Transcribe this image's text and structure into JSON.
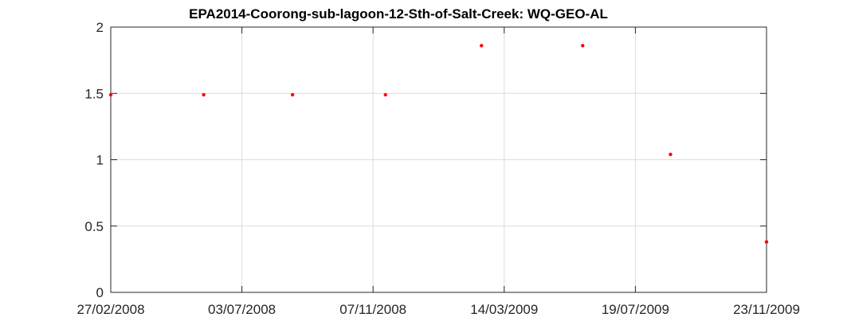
{
  "chart_data": {
    "type": "scatter",
    "title": "EPA2014-Coorong-sub-lagoon-12-Sth-of-Salt-Creek: WQ-GEO-AL",
    "xlabel": "",
    "ylabel": "",
    "x_axis_type": "date",
    "xlim": [
      "2008-02-27",
      "2009-11-23"
    ],
    "ylim": [
      0,
      2
    ],
    "x_ticks": [
      {
        "date": "2008-02-27",
        "label": "27/02/2008"
      },
      {
        "date": "2008-07-03",
        "label": "03/07/2008"
      },
      {
        "date": "2008-11-07",
        "label": "07/11/2008"
      },
      {
        "date": "2009-03-14",
        "label": "14/03/2009"
      },
      {
        "date": "2009-07-19",
        "label": "19/07/2009"
      },
      {
        "date": "2009-11-23",
        "label": "23/11/2009"
      }
    ],
    "y_ticks": [
      {
        "value": 0,
        "label": "0"
      },
      {
        "value": 0.5,
        "label": "0.5"
      },
      {
        "value": 1,
        "label": "1"
      },
      {
        "value": 1.5,
        "label": "1.5"
      },
      {
        "value": 2,
        "label": "2"
      }
    ],
    "grid": true,
    "marker_color": "#ff0000",
    "points": [
      {
        "date": "2008-02-27",
        "value": 1.49
      },
      {
        "date": "2008-05-27",
        "value": 1.49
      },
      {
        "date": "2008-08-21",
        "value": 1.49
      },
      {
        "date": "2008-11-19",
        "value": 1.49
      },
      {
        "date": "2009-02-20",
        "value": 1.86
      },
      {
        "date": "2009-05-29",
        "value": 1.86
      },
      {
        "date": "2009-08-22",
        "value": 1.04
      },
      {
        "date": "2009-11-23",
        "value": 0.38
      }
    ]
  }
}
